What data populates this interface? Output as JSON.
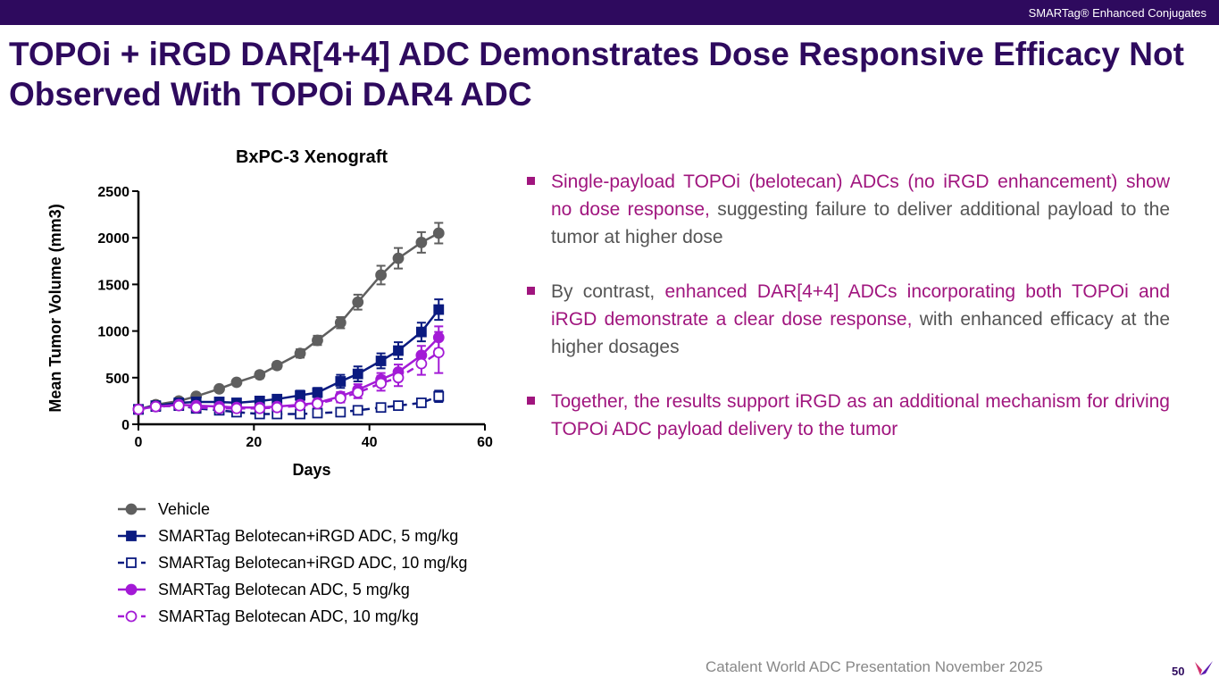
{
  "header": {
    "tag": "SMARTag® Enhanced Conjugates",
    "title": "TOPOi + iRGD DAR[4+4] ADC  Demonstrates Dose Responsive Efficacy Not Observed With TOPOi DAR4 ADC"
  },
  "bullets": [
    {
      "hl": "Single-payload TOPOi (belotecan) ADCs (no iRGD enhancement) show no dose response,",
      "rest": " suggesting failure to deliver additional payload to the tumor at higher dose"
    },
    {
      "pre": "By contrast, ",
      "hl": "enhanced DAR[4+4] ADCs incorporating both TOPOi and iRGD demonstrate a clear dose response,",
      "rest": " with enhanced efficacy at the higher dosages"
    },
    {
      "hl": "Together, the results support iRGD as an additional mechanism for driving TOPOi ADC payload delivery to the tumor"
    }
  ],
  "footer": {
    "text": "Catalent World ADC Presentation November 2025",
    "page": "50"
  },
  "chart_data": {
    "type": "line",
    "title": "BxPC-3 Xenograft",
    "xlabel": "Days",
    "ylabel": "Mean Tumor Volume (mm3)",
    "xlim": [
      0,
      60
    ],
    "ylim": [
      0,
      2500
    ],
    "xticks": [
      0,
      20,
      40,
      60
    ],
    "yticks": [
      0,
      500,
      1000,
      1500,
      2000,
      2500
    ],
    "x": [
      0,
      3,
      7,
      10,
      14,
      17,
      21,
      24,
      28,
      31,
      35,
      38,
      42,
      45,
      49,
      52
    ],
    "legend_position": "bottom",
    "series": [
      {
        "name": "Vehicle",
        "color": "#5f5f5f",
        "marker": "circle",
        "filled": true,
        "dashed": false,
        "values": [
          160,
          210,
          250,
          300,
          380,
          450,
          530,
          630,
          760,
          900,
          1090,
          1310,
          1600,
          1780,
          1950,
          2050
        ],
        "err": [
          20,
          20,
          20,
          25,
          25,
          30,
          35,
          35,
          45,
          50,
          60,
          80,
          100,
          110,
          110,
          110
        ]
      },
      {
        "name": "SMARTag Belotecan+iRGD ADC, 5 mg/kg",
        "color": "#0a1a80",
        "marker": "square",
        "filled": true,
        "dashed": false,
        "values": [
          160,
          200,
          230,
          240,
          240,
          230,
          250,
          270,
          310,
          340,
          460,
          540,
          680,
          790,
          990,
          1230
        ],
        "err": [
          15,
          15,
          20,
          25,
          30,
          30,
          40,
          40,
          50,
          50,
          70,
          80,
          80,
          90,
          100,
          110
        ]
      },
      {
        "name": "SMARTag Belotecan+iRGD ADC, 10 mg/kg",
        "color": "#0a1a80",
        "marker": "square",
        "filled": false,
        "dashed": true,
        "values": [
          160,
          190,
          200,
          170,
          150,
          130,
          110,
          110,
          110,
          120,
          130,
          150,
          180,
          200,
          230,
          300
        ],
        "err": [
          15,
          15,
          15,
          20,
          20,
          20,
          20,
          20,
          20,
          20,
          20,
          20,
          25,
          30,
          40,
          60
        ]
      },
      {
        "name": "SMARTag Belotecan ADC, 5 mg/kg",
        "color": "#a31ad6",
        "marker": "circle",
        "filled": true,
        "dashed": false,
        "values": [
          160,
          190,
          210,
          200,
          190,
          180,
          180,
          190,
          210,
          230,
          300,
          370,
          480,
          560,
          740,
          930
        ],
        "err": [
          15,
          15,
          20,
          20,
          20,
          20,
          25,
          25,
          30,
          35,
          45,
          60,
          70,
          80,
          100,
          120
        ]
      },
      {
        "name": "SMARTag Belotecan ADC, 10 mg/kg",
        "color": "#a31ad6",
        "marker": "circle",
        "filled": false,
        "dashed": true,
        "values": [
          160,
          190,
          200,
          180,
          170,
          170,
          170,
          180,
          200,
          220,
          280,
          340,
          440,
          500,
          650,
          770
        ],
        "err": [
          15,
          15,
          20,
          20,
          20,
          20,
          25,
          25,
          30,
          35,
          45,
          60,
          80,
          90,
          120,
          220
        ]
      }
    ]
  }
}
